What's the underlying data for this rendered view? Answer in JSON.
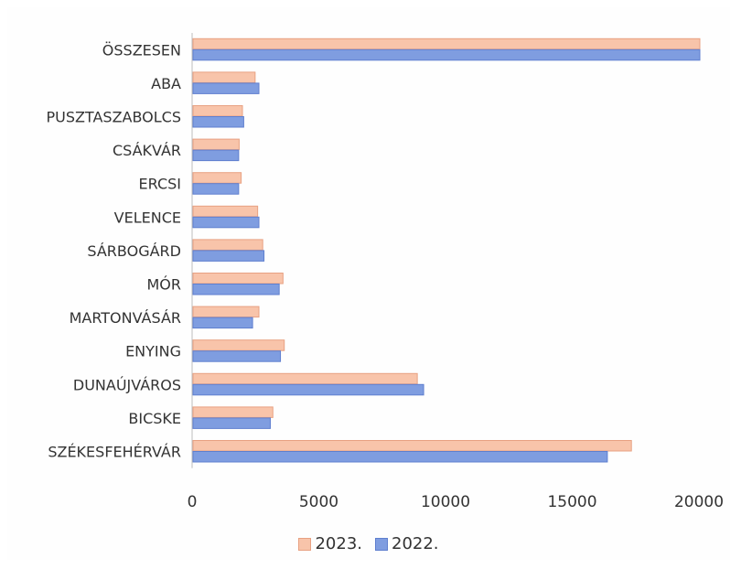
{
  "chart_data": {
    "type": "bar",
    "orientation": "horizontal",
    "categories": [
      "ÖSSZESEN",
      "ABA",
      "PUSZTASZABOLCS",
      "CSÁKVÁR",
      "ERCSI",
      "VELENCE",
      "SÁRBOGÁRD",
      "MÓR",
      "MARTONVÁSÁR",
      "ENYING",
      "DUNAÚJVÁROS",
      "BICSKE",
      "SZÉKESFEHÉRVÁR"
    ],
    "series": [
      {
        "name": "2023.",
        "color": "#f8c4aa",
        "stroke": "#e8a182",
        "values": [
          20000,
          2450,
          1950,
          1820,
          1900,
          2550,
          2750,
          3550,
          2600,
          3600,
          8850,
          3150,
          17300
        ]
      },
      {
        "name": "2022.",
        "color": "#7f9de0",
        "stroke": "#5f7fcf",
        "values": [
          20000,
          2600,
          2000,
          1800,
          1800,
          2600,
          2800,
          3400,
          2350,
          3450,
          9100,
          3050,
          16350
        ]
      }
    ],
    "xlim": [
      0,
      20000
    ],
    "xticks": [
      "0",
      "5000",
      "10000",
      "15000",
      "20000"
    ],
    "xtick_values": [
      0,
      5000,
      10000,
      15000,
      20000
    ],
    "legend_position": "bottom",
    "grid": false
  }
}
